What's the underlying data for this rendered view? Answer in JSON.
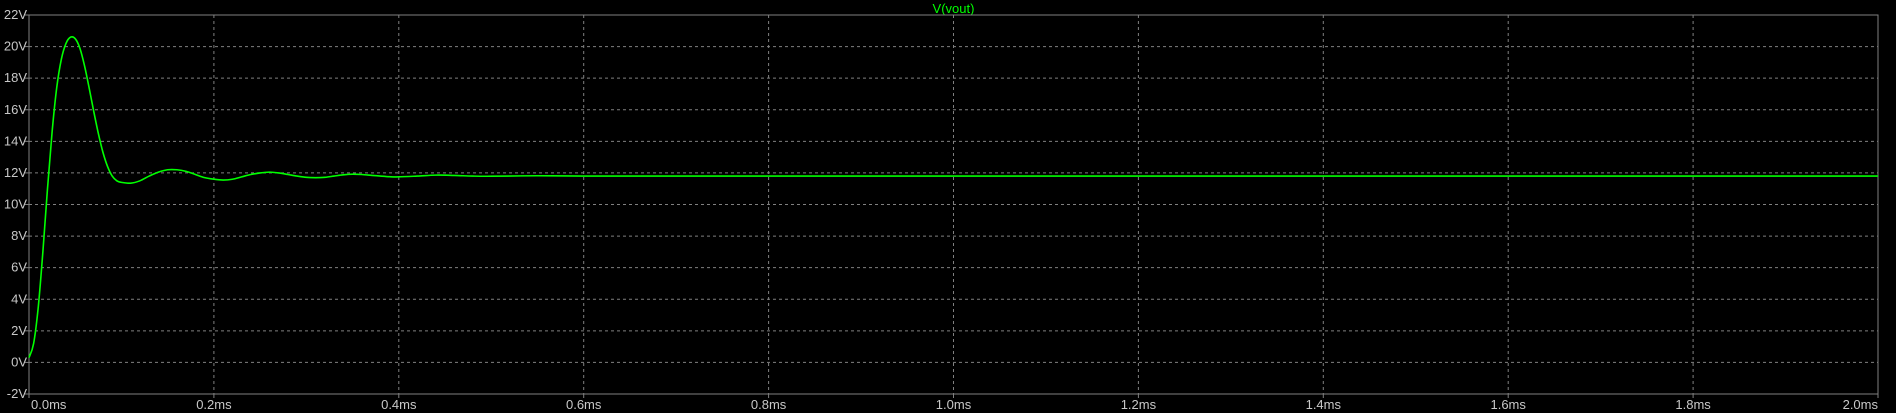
{
  "chart_data": {
    "type": "line",
    "title": "V(vout)",
    "xlabel": "",
    "ylabel": "",
    "xlim": [
      0,
      2.0
    ],
    "ylim": [
      -2,
      22
    ],
    "grid": true,
    "x_ticks": [
      "0.0ms",
      "0.2ms",
      "0.4ms",
      "0.6ms",
      "0.8ms",
      "1.0ms",
      "1.2ms",
      "1.4ms",
      "1.6ms",
      "1.8ms",
      "2.0ms"
    ],
    "y_ticks": [
      "22V",
      "20V",
      "18V",
      "16V",
      "14V",
      "12V",
      "10V",
      "8V",
      "6V",
      "4V",
      "2V",
      "0V",
      "-2V"
    ],
    "series": [
      {
        "name": "V(vout)",
        "color": "#00ff00",
        "x_unit": "ms",
        "y_unit": "V",
        "points": [
          [
            0.0,
            0.3
          ],
          [
            0.005,
            1.2
          ],
          [
            0.01,
            3.5
          ],
          [
            0.015,
            7.0
          ],
          [
            0.02,
            11.0
          ],
          [
            0.025,
            14.6
          ],
          [
            0.03,
            17.4
          ],
          [
            0.035,
            19.2
          ],
          [
            0.04,
            20.2
          ],
          [
            0.045,
            20.6
          ],
          [
            0.05,
            20.5
          ],
          [
            0.055,
            19.9
          ],
          [
            0.06,
            18.8
          ],
          [
            0.065,
            17.4
          ],
          [
            0.07,
            15.9
          ],
          [
            0.075,
            14.5
          ],
          [
            0.08,
            13.3
          ],
          [
            0.085,
            12.4
          ],
          [
            0.09,
            11.8
          ],
          [
            0.095,
            11.5
          ],
          [
            0.1,
            11.4
          ],
          [
            0.11,
            11.35
          ],
          [
            0.12,
            11.5
          ],
          [
            0.13,
            11.8
          ],
          [
            0.14,
            12.05
          ],
          [
            0.15,
            12.2
          ],
          [
            0.16,
            12.2
          ],
          [
            0.17,
            12.1
          ],
          [
            0.18,
            11.9
          ],
          [
            0.19,
            11.7
          ],
          [
            0.2,
            11.6
          ],
          [
            0.21,
            11.55
          ],
          [
            0.22,
            11.6
          ],
          [
            0.23,
            11.75
          ],
          [
            0.24,
            11.9
          ],
          [
            0.25,
            12.0
          ],
          [
            0.26,
            12.05
          ],
          [
            0.27,
            12.0
          ],
          [
            0.28,
            11.9
          ],
          [
            0.29,
            11.8
          ],
          [
            0.3,
            11.72
          ],
          [
            0.31,
            11.7
          ],
          [
            0.32,
            11.72
          ],
          [
            0.33,
            11.8
          ],
          [
            0.34,
            11.88
          ],
          [
            0.35,
            11.92
          ],
          [
            0.36,
            11.9
          ],
          [
            0.37,
            11.85
          ],
          [
            0.38,
            11.8
          ],
          [
            0.39,
            11.76
          ],
          [
            0.4,
            11.75
          ],
          [
            0.42,
            11.8
          ],
          [
            0.44,
            11.86
          ],
          [
            0.46,
            11.84
          ],
          [
            0.48,
            11.8
          ],
          [
            0.5,
            11.79
          ],
          [
            0.55,
            11.82
          ],
          [
            0.6,
            11.8
          ],
          [
            0.7,
            11.8
          ],
          [
            0.8,
            11.8
          ],
          [
            1.0,
            11.8
          ],
          [
            1.2,
            11.8
          ],
          [
            1.4,
            11.8
          ],
          [
            1.6,
            11.8
          ],
          [
            1.8,
            11.8
          ],
          [
            2.0,
            11.8
          ]
        ]
      }
    ]
  },
  "colors": {
    "background": "#000000",
    "frame": "#808080",
    "grid": "#808080",
    "tick_text": "#c8c8c8",
    "trace": "#00ff00"
  }
}
